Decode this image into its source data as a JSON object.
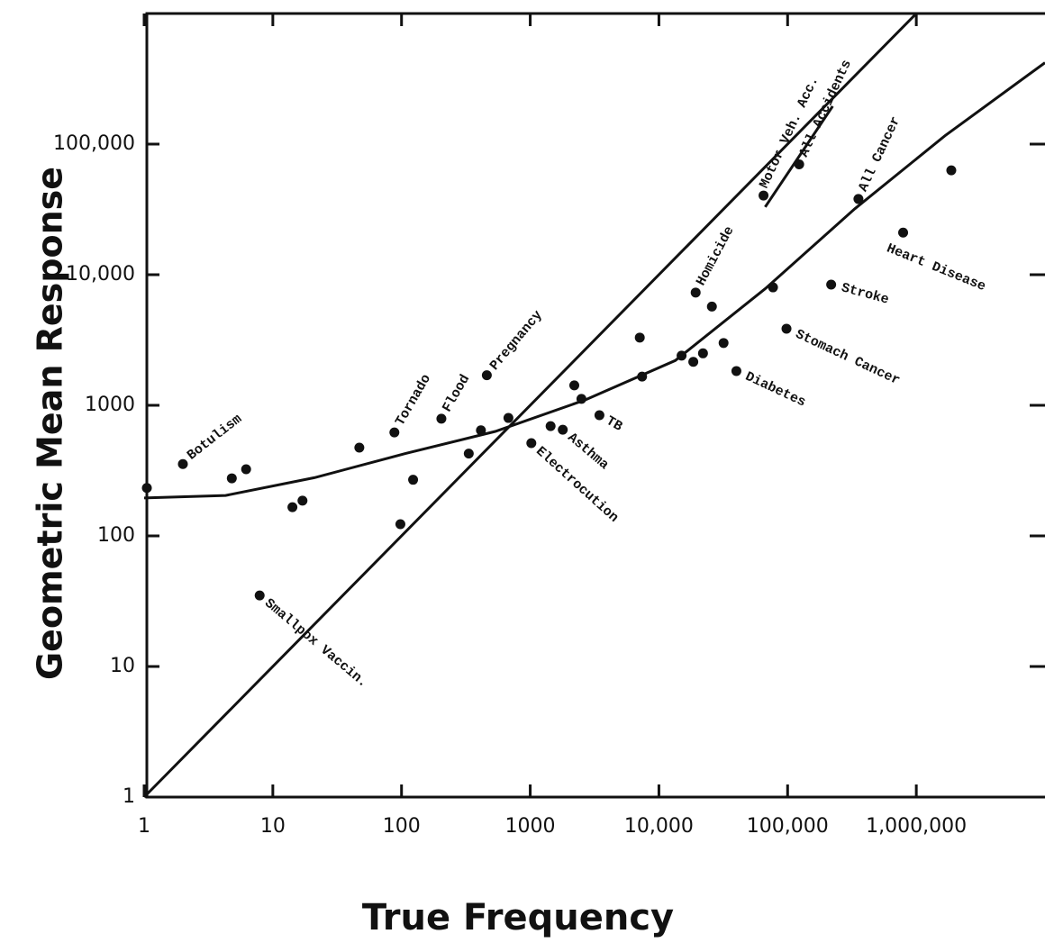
{
  "chart_data": {
    "type": "scatter",
    "xlabel": "True Frequency",
    "ylabel": "Geometric Mean Response",
    "xscale": "log",
    "yscale": "log",
    "xlim": [
      1,
      10000000
    ],
    "ylim": [
      1,
      1000000
    ],
    "xticks": [
      1,
      10,
      100,
      1000,
      {
        "value": 10000,
        "label": "10,000"
      },
      {
        "value": 100000,
        "label": "100,000"
      },
      {
        "value": 1000000,
        "label": "1,000,000"
      }
    ],
    "yticks": [
      1,
      10,
      100,
      1000,
      {
        "value": 10000,
        "label": "10,000"
      },
      {
        "value": 100000,
        "label": "100,000"
      }
    ],
    "color": "#111111",
    "x": [
      1.05,
      2,
      4.8,
      6.2,
      7.9,
      14.2,
      17,
      47,
      88,
      98,
      123,
      204,
      333,
      414,
      460,
      677,
      1020,
      1440,
      1790,
      2200,
      2500,
      3450,
      7100,
      7400,
      15000,
      18500,
      19300,
      22000,
      25800,
      31800,
      40000,
      65000,
      77000,
      98000,
      123000,
      218000,
      355000,
      790000,
      1870000
    ],
    "values": [
      233,
      355,
      276,
      324,
      35,
      166,
      186,
      474,
      620,
      123,
      269,
      790,
      427,
      643,
      1700,
      800,
      513,
      693,
      650,
      1420,
      1120,
      840,
      3300,
      1660,
      2400,
      2150,
      7300,
      2500,
      5700,
      3000,
      1830,
      40400,
      8000,
      3860,
      70000,
      8400,
      38000,
      21000,
      63000
    ],
    "point_labels": [
      null,
      "Botulism",
      null,
      null,
      "Smallpox Vaccin.",
      null,
      null,
      null,
      "Tornado",
      null,
      null,
      "Flood",
      null,
      null,
      "Pregnancy",
      null,
      "Electrocution",
      null,
      "Asthma",
      null,
      null,
      "TB",
      null,
      null,
      null,
      null,
      "Homicide",
      null,
      null,
      null,
      "Diabetes",
      "Motor Veh. Acc.",
      null,
      "Stomach Cancer",
      "All Accidents",
      "Stroke",
      "All Cancer",
      "Heart Disease",
      null
    ],
    "lines": [
      {
        "x": [
          1,
          1000000
        ],
        "values": [
          1,
          1000000
        ]
      },
      {
        "x": [
          1,
          4.3,
          21,
          107,
          535,
          2680,
          13400,
          67000,
          333000,
          1670000,
          10000000
        ],
        "values": [
          195,
          204,
          279,
          427,
          631,
          1100,
          2200,
          7800,
          32000,
          116000,
          420000
        ]
      },
      {
        "x": [
          67000,
          224000
        ],
        "values": [
          33000,
          195000
        ]
      }
    ]
  }
}
